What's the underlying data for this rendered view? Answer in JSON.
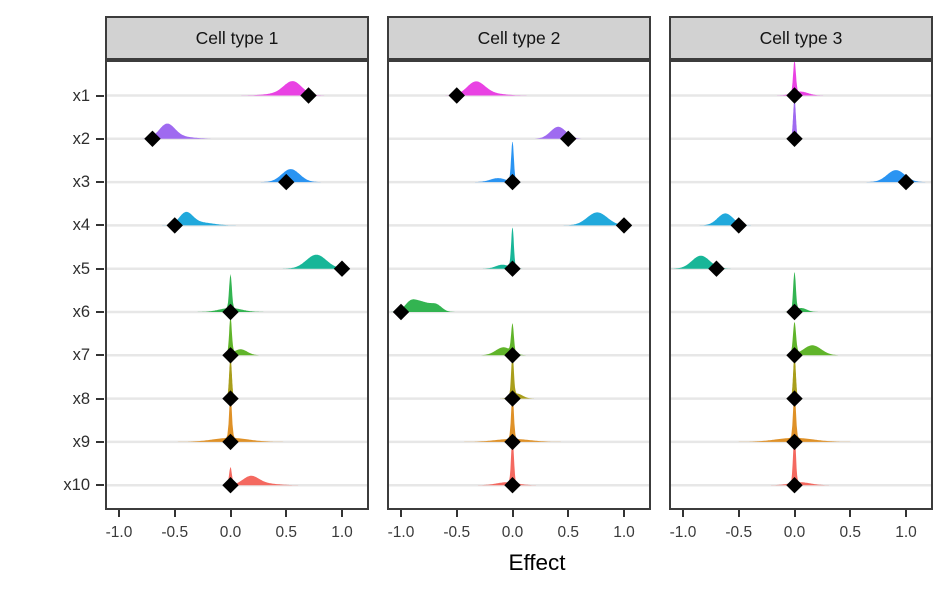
{
  "chart_data": {
    "type": "ridgeline-dot",
    "title": "",
    "xlabel": "Effect",
    "facet_labels": [
      "Cell type 1",
      "Cell type 2",
      "Cell type 3"
    ],
    "y_categories": [
      "x1",
      "x2",
      "x3",
      "x4",
      "x5",
      "x6",
      "x7",
      "x8",
      "x9",
      "x10"
    ],
    "x_ticks": [
      -1.0,
      -0.5,
      0.0,
      0.5,
      1.0
    ],
    "x_tick_labels": [
      "-1.0",
      "-0.5",
      "0.0",
      "0.5",
      "1.0"
    ],
    "xlim": [
      -1.13,
      1.24
    ],
    "grid": "horizontal-only",
    "legend": "none",
    "marker": "black-diamond",
    "row_colors": [
      "#E83AE2",
      "#9B64EF",
      "#2190F1",
      "#18A5DB",
      "#0FB394",
      "#2BB14A",
      "#5AB121",
      "#A69A12",
      "#DE8C1E",
      "#F4635A"
    ],
    "colors": {
      "strip_bg": "#d2d2d2",
      "panel_border": "#3c3c3c",
      "gridline": "#e7e7e7",
      "marker": "#000000"
    },
    "facets": [
      {
        "label": "Cell type 1",
        "rows": [
          {
            "var": "x1",
            "estimate": 0.7,
            "density": [
              [
                0.56,
                0.08,
                13
              ],
              [
                0.45,
                0.13,
                2
              ]
            ]
          },
          {
            "var": "x2",
            "estimate": -0.7,
            "density": [
              [
                -0.57,
                0.07,
                14
              ],
              [
                -0.45,
                0.12,
                2
              ]
            ]
          },
          {
            "var": "x3",
            "estimate": 0.5,
            "density": [
              [
                0.54,
                0.08,
                13
              ]
            ]
          },
          {
            "var": "x4",
            "estimate": -0.5,
            "density": [
              [
                -0.4,
                0.06,
                12
              ],
              [
                -0.27,
                0.11,
                3
              ]
            ]
          },
          {
            "var": "x5",
            "estimate": 1.0,
            "density": [
              [
                0.77,
                0.09,
                14
              ]
            ]
          },
          {
            "var": "x6",
            "estimate": 0.0,
            "density": [
              [
                0,
                0.012,
                34
              ],
              [
                0,
                0.1,
                4
              ]
            ]
          },
          {
            "var": "x7",
            "estimate": 0.0,
            "density": [
              [
                0,
                0.012,
                36
              ],
              [
                0.09,
                0.06,
                6
              ]
            ]
          },
          {
            "var": "x8",
            "estimate": 0.0,
            "density": [
              [
                0,
                0.012,
                42
              ]
            ]
          },
          {
            "var": "x9",
            "estimate": 0.0,
            "density": [
              [
                0,
                0.012,
                44
              ],
              [
                0,
                0.16,
                4
              ]
            ]
          },
          {
            "var": "x10",
            "estimate": 0.0,
            "density": [
              [
                0,
                0.012,
                18
              ],
              [
                0.18,
                0.07,
                8
              ],
              [
                0.28,
                0.12,
                2
              ]
            ]
          }
        ]
      },
      {
        "label": "Cell type 2",
        "rows": [
          {
            "var": "x1",
            "estimate": -0.5,
            "density": [
              [
                -0.33,
                0.08,
                13
              ],
              [
                -0.2,
                0.12,
                2
              ]
            ]
          },
          {
            "var": "x2",
            "estimate": 0.5,
            "density": [
              [
                0.41,
                0.07,
                12
              ]
            ]
          },
          {
            "var": "x3",
            "estimate": 0.0,
            "density": [
              [
                0,
                0.012,
                40
              ],
              [
                -0.13,
                0.07,
                4
              ]
            ]
          },
          {
            "var": "x4",
            "estimate": 1.0,
            "density": [
              [
                0.76,
                0.09,
                13
              ]
            ]
          },
          {
            "var": "x5",
            "estimate": 0.0,
            "density": [
              [
                0,
                0.012,
                40
              ],
              [
                -0.09,
                0.06,
                4
              ]
            ]
          },
          {
            "var": "x6",
            "estimate": -1.0,
            "density": [
              [
                -0.82,
                0.08,
                10
              ],
              [
                -0.68,
                0.05,
                6
              ],
              [
                -0.92,
                0.05,
                7
              ]
            ]
          },
          {
            "var": "x7",
            "estimate": 0.0,
            "density": [
              [
                0,
                0.012,
                28
              ],
              [
                -0.08,
                0.07,
                8
              ]
            ]
          },
          {
            "var": "x8",
            "estimate": 0.0,
            "density": [
              [
                0,
                0.012,
                40
              ],
              [
                0.04,
                0.05,
                5
              ]
            ]
          },
          {
            "var": "x9",
            "estimate": 0.0,
            "density": [
              [
                0,
                0.012,
                44
              ],
              [
                0,
                0.15,
                3
              ]
            ]
          },
          {
            "var": "x10",
            "estimate": 0.0,
            "density": [
              [
                0,
                0.012,
                46
              ],
              [
                -0.05,
                0.09,
                3
              ]
            ]
          }
        ]
      },
      {
        "label": "Cell type 3",
        "rows": [
          {
            "var": "x1",
            "estimate": 0.0,
            "density": [
              [
                0,
                0.012,
                32
              ],
              [
                0.05,
                0.07,
                4
              ]
            ]
          },
          {
            "var": "x2",
            "estimate": 0.0,
            "density": [
              [
                0,
                0.012,
                40
              ]
            ]
          },
          {
            "var": "x3",
            "estimate": 1.0,
            "density": [
              [
                0.91,
                0.08,
                12
              ]
            ]
          },
          {
            "var": "x4",
            "estimate": -0.5,
            "density": [
              [
                -0.62,
                0.07,
                12
              ]
            ]
          },
          {
            "var": "x5",
            "estimate": -0.7,
            "density": [
              [
                -0.84,
                0.08,
                13
              ]
            ]
          },
          {
            "var": "x6",
            "estimate": 0.0,
            "density": [
              [
                0,
                0.012,
                38
              ],
              [
                0.06,
                0.05,
                4
              ]
            ]
          },
          {
            "var": "x7",
            "estimate": 0.0,
            "density": [
              [
                0,
                0.014,
                32
              ],
              [
                0.16,
                0.08,
                10
              ]
            ]
          },
          {
            "var": "x8",
            "estimate": 0.0,
            "density": [
              [
                0,
                0.012,
                44
              ]
            ]
          },
          {
            "var": "x9",
            "estimate": 0.0,
            "density": [
              [
                0,
                0.012,
                46
              ],
              [
                0,
                0.17,
                4
              ]
            ]
          },
          {
            "var": "x10",
            "estimate": 0.0,
            "density": [
              [
                0,
                0.012,
                50
              ],
              [
                0.05,
                0.09,
                3
              ]
            ]
          }
        ]
      }
    ]
  }
}
